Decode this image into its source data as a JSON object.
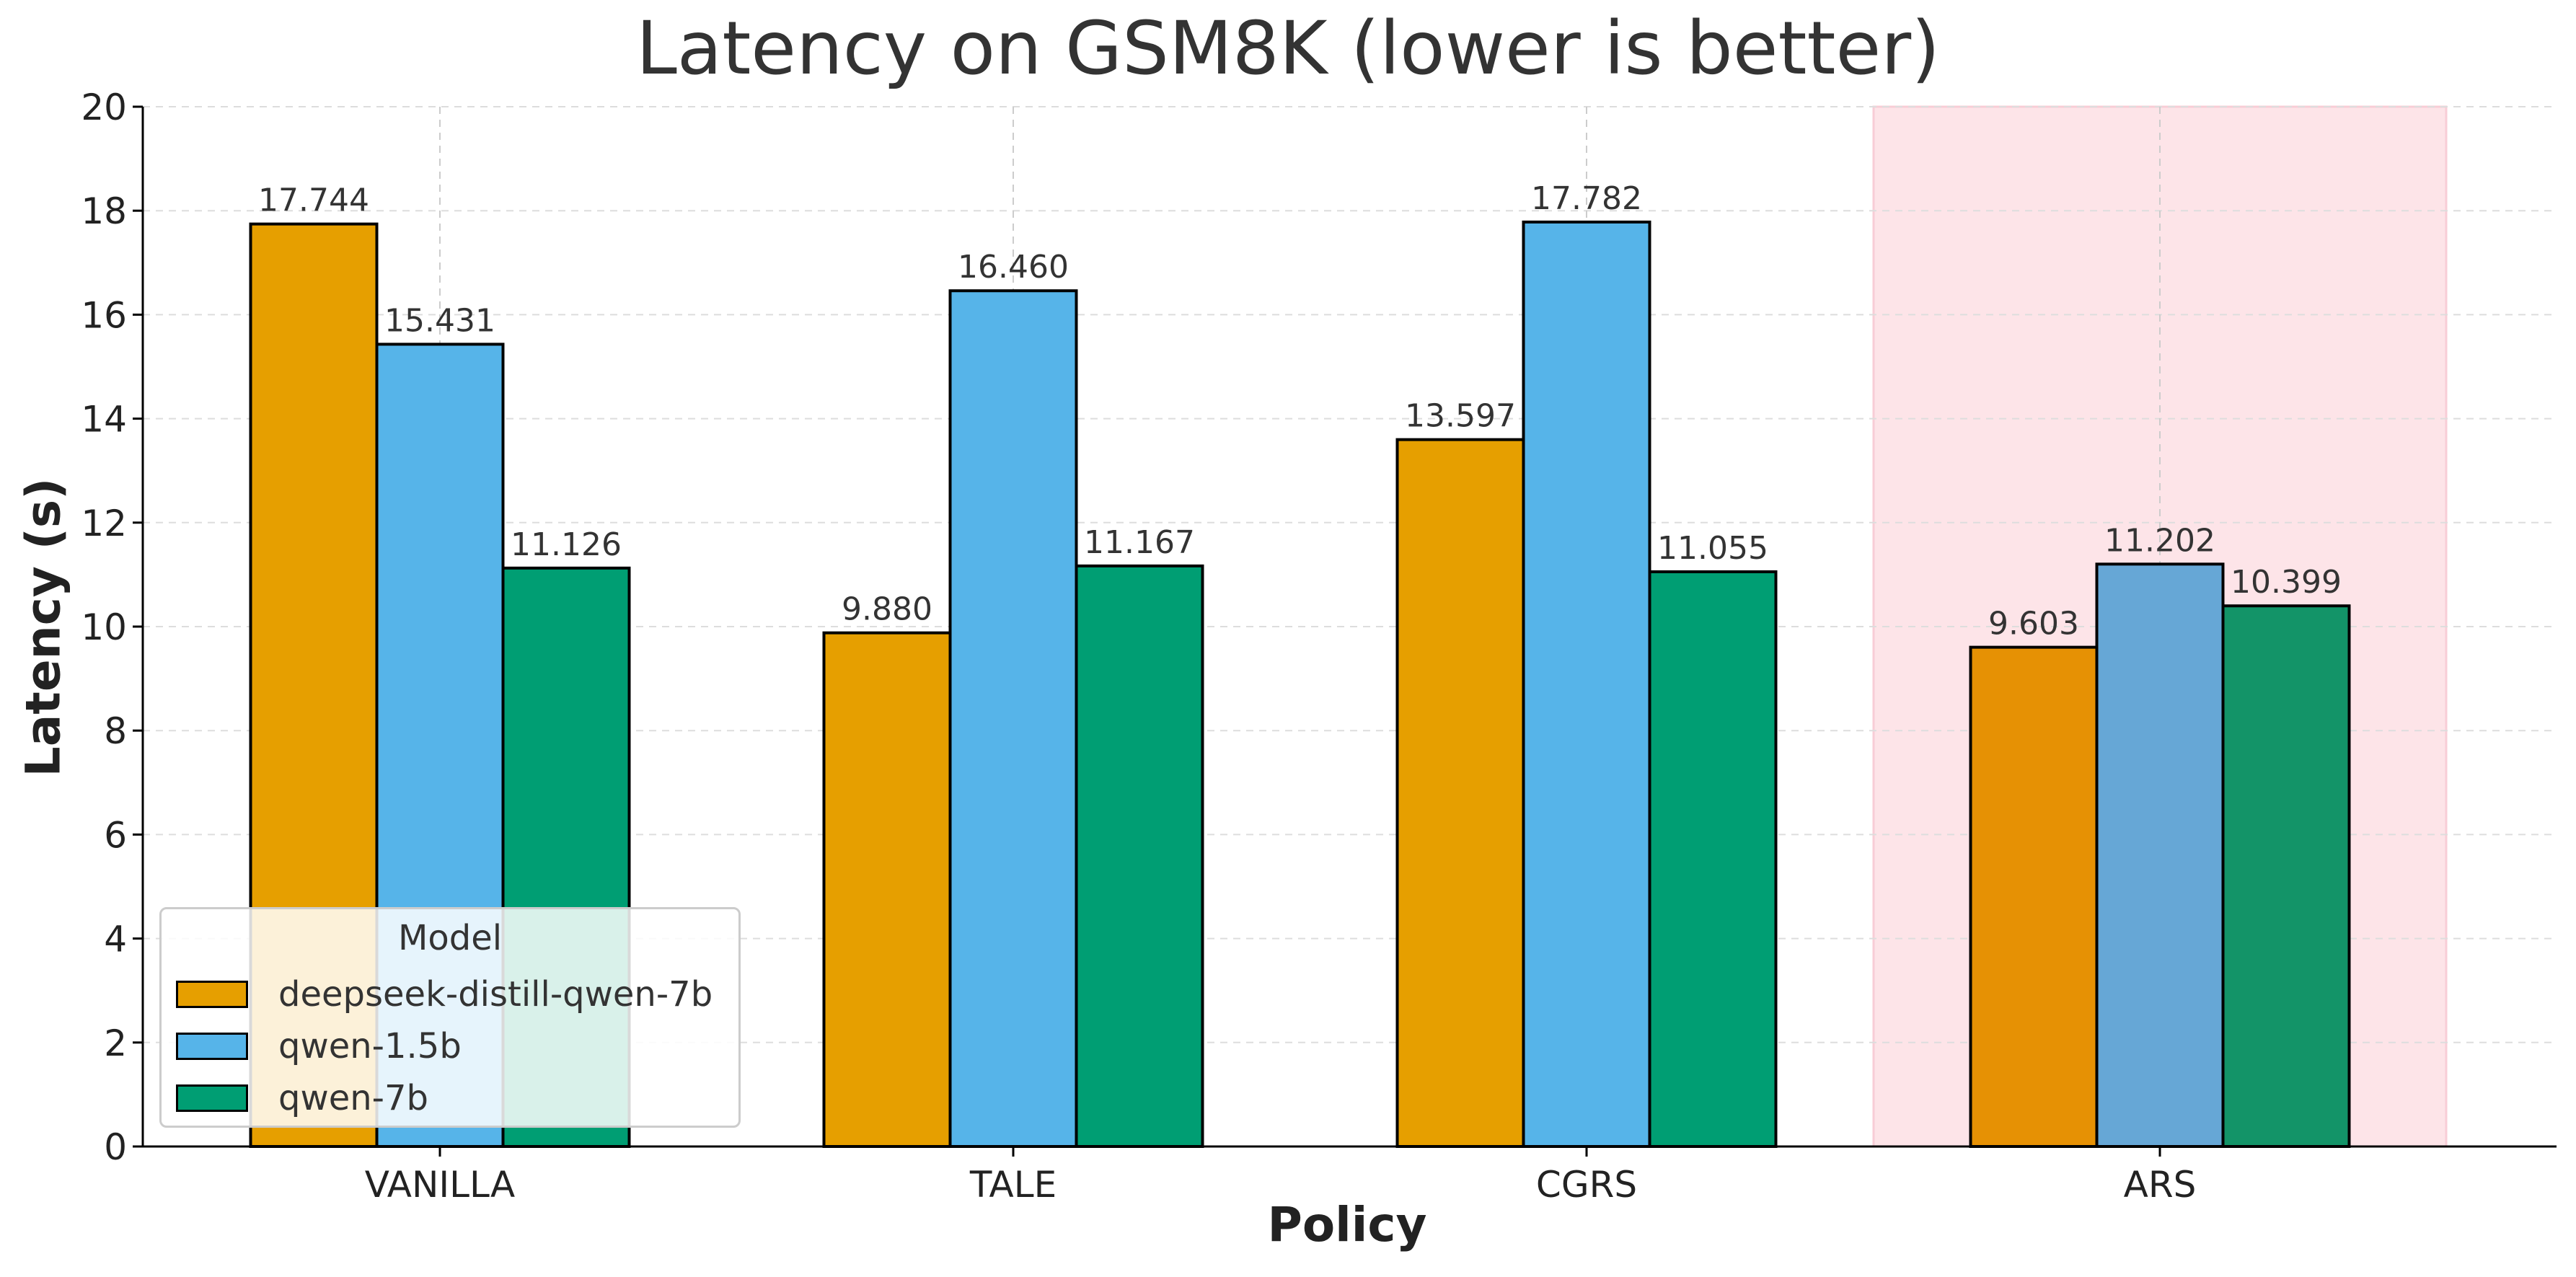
{
  "chart_data": {
    "type": "bar",
    "title": "Latency on GSM8K (lower is better)",
    "xlabel": "Policy",
    "ylabel": "Latency (s)",
    "ylim": [
      0,
      20
    ],
    "yticks": [
      "0",
      "2",
      "4",
      "6",
      "8",
      "10",
      "12",
      "14",
      "16",
      "18",
      "20"
    ],
    "categories": [
      "VANILLA",
      "TALE",
      "CGRS",
      "ARS"
    ],
    "highlighted_category": "ARS",
    "highlight_color": "#fde4e8",
    "grid": true,
    "legend": {
      "title": "Model",
      "placement": "lower-left"
    },
    "series": [
      {
        "name": "deepseek-distill-qwen-7b",
        "color": "#E69F00",
        "highlight_color": "#E69104",
        "values": [
          17.744,
          9.88,
          13.597,
          9.603
        ],
        "labels": [
          "17.744",
          "9.880",
          "13.597",
          "9.603"
        ]
      },
      {
        "name": "qwen-1.5b",
        "color": "#56B4E9",
        "highlight_color": "#66A7D6",
        "values": [
          15.431,
          16.46,
          17.782,
          11.202
        ],
        "labels": [
          "15.431",
          "16.460",
          "17.782",
          "11.202"
        ]
      },
      {
        "name": "qwen-7b",
        "color": "#009E73",
        "highlight_color": "#139468",
        "values": [
          11.126,
          11.167,
          11.055,
          10.399
        ],
        "labels": [
          "11.126",
          "11.167",
          "11.055",
          "10.399"
        ]
      }
    ]
  }
}
